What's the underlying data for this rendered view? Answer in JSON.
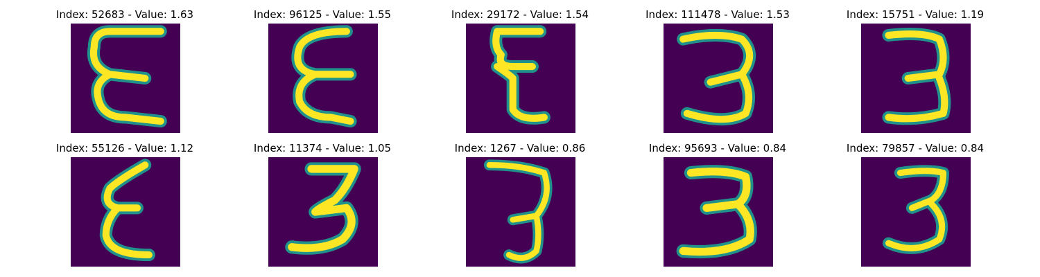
{
  "palette": {
    "background": "#440154",
    "stroke_core": "#fde725",
    "stroke_edge": "#21918c",
    "stroke_mid": "#5ec962"
  },
  "panels": [
    {
      "title": "Index: 52683 - Value: 1.63",
      "digit": "3",
      "style": "reversed-epsilon"
    },
    {
      "title": "Index: 96125 - Value: 1.55",
      "digit": "3",
      "style": "reversed-epsilon"
    },
    {
      "title": "Index: 29172 - Value: 1.54",
      "digit": "3",
      "style": "reversed-epsilon"
    },
    {
      "title": "Index: 111478 - Value: 1.53",
      "digit": "3",
      "style": "three"
    },
    {
      "title": "Index: 15751 - Value: 1.19",
      "digit": "3",
      "style": "three"
    },
    {
      "title": "Index: 55126 - Value: 1.12",
      "digit": "3",
      "style": "reversed-epsilon"
    },
    {
      "title": "Index: 11374 - Value: 1.05",
      "digit": "3",
      "style": "three"
    },
    {
      "title": "Index: 1267 - Value: 0.86",
      "digit": "3",
      "style": "three"
    },
    {
      "title": "Index: 95693 - Value: 0.84",
      "digit": "3",
      "style": "three"
    },
    {
      "title": "Index: 79857 - Value: 0.84",
      "digit": "3",
      "style": "three"
    }
  ]
}
